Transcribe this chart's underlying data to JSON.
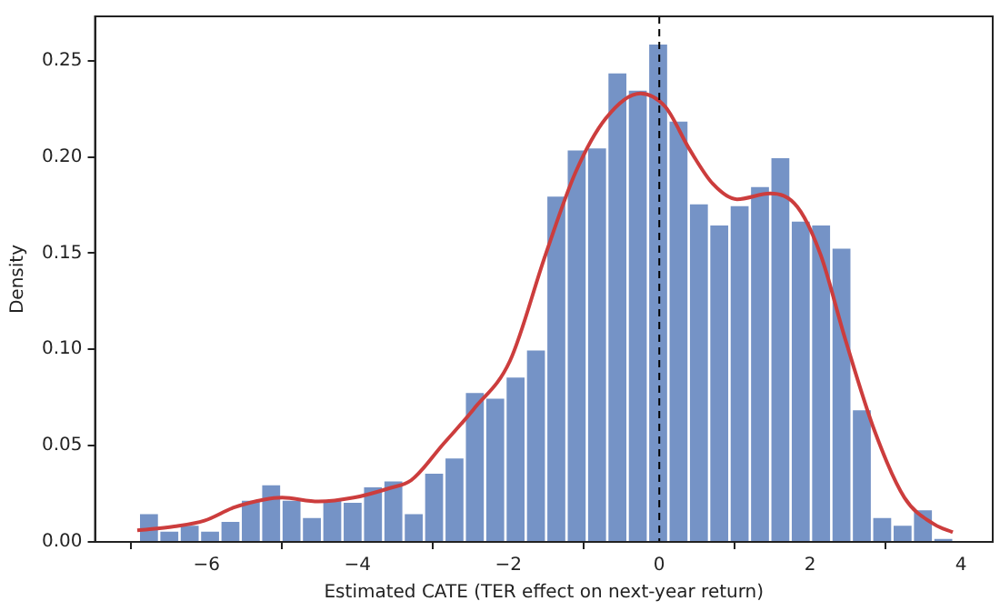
{
  "chart_data": {
    "type": "histogram",
    "xlabel": "Estimated CATE (TER effect on next-year return)",
    "ylabel": "Density",
    "bins": [
      -6.9,
      -6.63,
      -6.36,
      -6.09,
      -5.82,
      -5.55,
      -5.28,
      -5.01,
      -4.74,
      -4.47,
      -4.2,
      -3.93,
      -3.66,
      -3.39,
      -3.12,
      -2.85,
      -2.58,
      -2.31,
      -2.04,
      -1.77,
      -1.5,
      -1.23,
      -0.96,
      -0.69,
      -0.42,
      -0.15,
      0.12,
      0.39,
      0.66,
      0.93,
      1.2,
      1.47,
      1.74,
      2.01,
      2.28,
      2.55,
      2.82,
      3.09,
      3.36,
      3.63,
      3.9
    ],
    "series": [
      {
        "color": "#7593c6",
        "values": [
          0.015,
          0.006,
          0.009,
          0.006,
          0.011,
          0.022,
          0.03,
          0.022,
          0.013,
          0.022,
          0.021,
          0.029,
          0.032,
          0.015,
          0.036,
          0.044,
          0.078,
          0.075,
          0.086,
          0.1,
          0.18,
          0.204,
          0.205,
          0.244,
          0.235,
          0.259,
          0.219,
          0.176,
          0.165,
          0.175,
          0.185,
          0.2,
          0.167,
          0.165,
          0.153,
          0.069,
          0.013,
          0.009,
          0.017,
          0.002
        ]
      },
      {
        "type": "line",
        "color": "#cc3d3d",
        "x": [
          -6.92,
          -6.43,
          -6.03,
          -5.63,
          -5.24,
          -5.0,
          -4.52,
          -4.05,
          -3.57,
          -3.29,
          -2.86,
          -2.46,
          -1.98,
          -1.51,
          -1.11,
          -0.71,
          -0.25,
          0.08,
          0.4,
          0.71,
          1.03,
          1.47,
          1.83,
          2.14,
          2.46,
          2.86,
          3.25,
          3.65,
          3.89
        ],
        "values": [
          0.006,
          0.008,
          0.011,
          0.018,
          0.022,
          0.023,
          0.021,
          0.023,
          0.028,
          0.032,
          0.051,
          0.069,
          0.094,
          0.149,
          0.192,
          0.22,
          0.233,
          0.226,
          0.204,
          0.186,
          0.178,
          0.181,
          0.174,
          0.149,
          0.106,
          0.057,
          0.023,
          0.009,
          0.005
        ]
      }
    ],
    "ref_lines": [
      {
        "axis": "x",
        "value": 0,
        "color": "#000000",
        "line_style": "dashed"
      }
    ],
    "xlim": [
      -7.48,
      4.42
    ],
    "ylim": [
      0,
      0.273
    ],
    "xticks": [
      {
        "value": -6,
        "label": "−6"
      },
      {
        "value": -4,
        "label": "−4"
      },
      {
        "value": -2,
        "label": "−2"
      },
      0,
      2,
      4
    ],
    "yticks": [
      {
        "value": 0,
        "label": "0.00"
      },
      {
        "value": 0.05,
        "label": "0.05"
      },
      {
        "value": 0.1,
        "label": "0.10"
      },
      {
        "value": 0.15,
        "label": "0.15"
      },
      {
        "value": 0.2,
        "label": "0.20"
      },
      {
        "value": 0.25,
        "label": "0.25"
      }
    ]
  }
}
